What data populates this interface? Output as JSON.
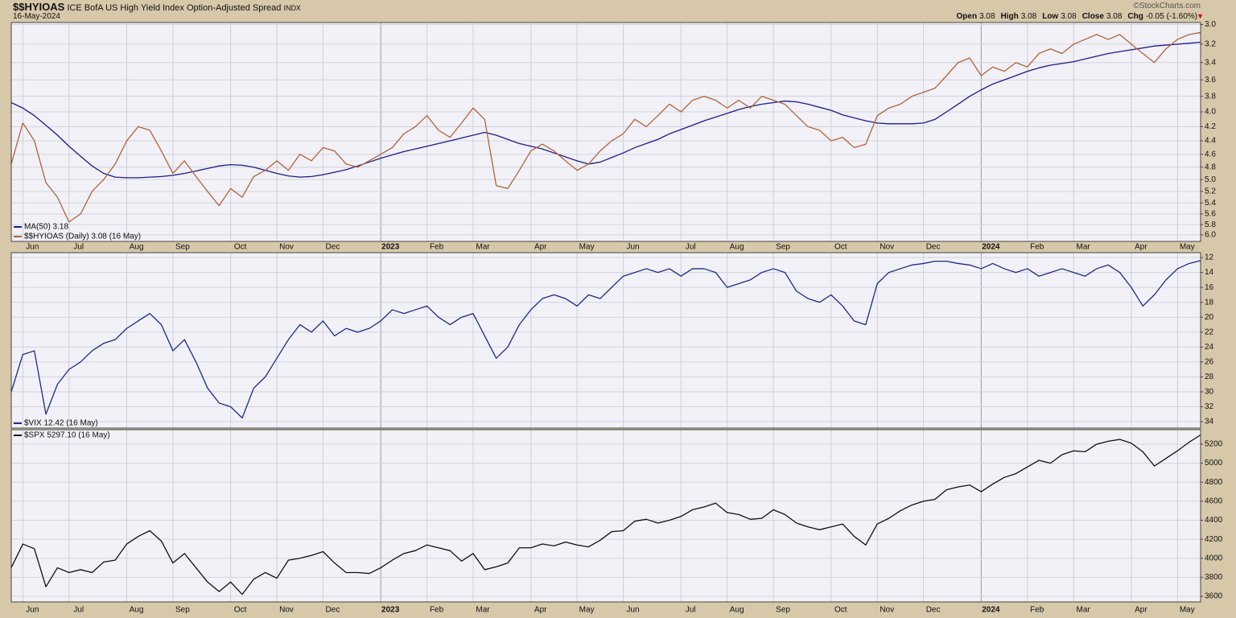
{
  "chart_data": [
    {
      "type": "line",
      "title": "$$HYIOAS",
      "subtitle": "ICE BofA US High Yield Index Option-Adjusted Spread",
      "exchange": "INDX",
      "date": "16-May-2024",
      "source": "©StockCharts.com",
      "quote": [
        {
          "label": "Open",
          "value": 3.08
        },
        {
          "label": "High",
          "value": 3.08
        },
        {
          "label": "Low",
          "value": 3.08
        },
        {
          "label": "Close",
          "value": 3.08
        },
        {
          "label": "Chg",
          "value": -0.05,
          "percent": {
            "value": -1.6,
            "label": "(-1.60%)"
          }
        }
      ],
      "categories": [
        null,
        "Jun",
        null,
        null,
        null,
        "Jul",
        null,
        null,
        null,
        null,
        "Aug",
        null,
        null,
        null,
        "Sep",
        null,
        null,
        null,
        null,
        "Oct",
        null,
        null,
        null,
        "Nov",
        null,
        null,
        null,
        "Dec",
        null,
        null,
        null,
        null,
        "2023",
        null,
        null,
        null,
        "Feb",
        null,
        null,
        null,
        "Mar",
        null,
        null,
        null,
        null,
        "Apr",
        null,
        null,
        null,
        "May",
        null,
        null,
        null,
        "Jun",
        null,
        null,
        null,
        null,
        "Jul",
        null,
        null,
        null,
        "Aug",
        null,
        null,
        null,
        "Sep",
        null,
        null,
        null,
        null,
        "Oct",
        null,
        null,
        null,
        "Nov",
        null,
        null,
        null,
        "Dec",
        null,
        null,
        null,
        null,
        "2024",
        null,
        null,
        null,
        "Feb",
        null,
        null,
        null,
        "Mar",
        null,
        null,
        null,
        null,
        "Apr",
        null,
        null,
        null,
        "May",
        null,
        null
      ],
      "log_scale": true,
      "inverted": true,
      "ylim": [
        2.98,
        6.13
      ],
      "yticks": [
        {
          "value": 3,
          "label": "3.0"
        },
        3.2,
        3.4,
        3.6,
        3.8,
        {
          "value": 4,
          "label": "4.0"
        },
        4.2,
        4.4,
        4.6,
        4.8,
        {
          "value": 5,
          "label": "5.0"
        },
        5.2,
        5.4,
        5.6,
        5.8,
        {
          "value": 6,
          "label": "6.0"
        }
      ],
      "grid": true,
      "legend": "lower left",
      "series": [
        {
          "name": "MA(50) 3.18",
          "color": "#1c1c8c",
          "values": [
            3.88,
            3.95,
            4.05,
            4.18,
            4.32,
            4.48,
            4.63,
            4.78,
            4.9,
            4.96,
            4.97,
            4.97,
            4.96,
            4.95,
            4.93,
            4.9,
            4.86,
            4.82,
            4.78,
            4.76,
            4.77,
            4.8,
            4.85,
            4.9,
            4.94,
            4.96,
            4.95,
            4.92,
            4.88,
            4.84,
            4.78,
            4.72,
            4.66,
            4.61,
            4.56,
            4.52,
            4.48,
            4.44,
            4.4,
            4.36,
            4.32,
            4.28,
            4.32,
            4.38,
            4.44,
            4.48,
            4.52,
            4.58,
            4.64,
            4.7,
            4.75,
            4.72,
            4.65,
            4.58,
            4.5,
            4.44,
            4.38,
            4.3,
            4.24,
            4.18,
            4.12,
            4.07,
            4.02,
            3.97,
            3.93,
            3.9,
            3.88,
            3.86,
            3.87,
            3.9,
            3.94,
            3.98,
            4.04,
            4.08,
            4.12,
            4.15,
            4.16,
            4.16,
            4.16,
            4.15,
            4.1,
            4.0,
            3.9,
            3.8,
            3.72,
            3.65,
            3.6,
            3.55,
            3.5,
            3.46,
            3.43,
            3.41,
            3.39,
            3.36,
            3.33,
            3.3,
            3.28,
            3.26,
            3.24,
            3.22,
            3.21,
            3.2,
            3.19,
            3.18
          ]
        },
        {
          "name": "$$HYIOAS (Daily) 3.08 (16 May)",
          "color": "#b0643c",
          "values": [
            4.75,
            4.15,
            4.4,
            5.05,
            5.3,
            5.75,
            5.6,
            5.2,
            5.0,
            4.75,
            4.4,
            4.2,
            4.25,
            4.55,
            4.9,
            4.7,
            4.95,
            5.2,
            5.45,
            5.15,
            5.3,
            4.95,
            4.85,
            4.7,
            4.85,
            4.6,
            4.7,
            4.5,
            4.55,
            4.75,
            4.8,
            4.7,
            4.6,
            4.5,
            4.3,
            4.2,
            4.05,
            4.25,
            4.35,
            4.15,
            3.95,
            4.1,
            5.1,
            5.15,
            4.85,
            4.55,
            4.45,
            4.55,
            4.7,
            4.85,
            4.75,
            4.55,
            4.4,
            4.3,
            4.1,
            4.2,
            4.05,
            3.9,
            4.0,
            3.85,
            3.8,
            3.85,
            3.95,
            3.85,
            3.95,
            3.8,
            3.85,
            3.9,
            4.05,
            4.2,
            4.25,
            4.4,
            4.35,
            4.5,
            4.45,
            4.05,
            3.95,
            3.9,
            3.8,
            3.75,
            3.7,
            3.55,
            3.4,
            3.35,
            3.55,
            3.45,
            3.5,
            3.4,
            3.45,
            3.3,
            3.25,
            3.3,
            3.2,
            3.15,
            3.1,
            3.15,
            3.1,
            3.2,
            3.3,
            3.4,
            3.25,
            3.15,
            3.1,
            3.08
          ]
        }
      ]
    },
    {
      "type": "line",
      "inverted": true,
      "ylim": [
        11.35,
        34.86
      ],
      "yticks": [
        12,
        14,
        16,
        18,
        20,
        22,
        24,
        26,
        28,
        30,
        32,
        34
      ],
      "grid": true,
      "legend": "lower left",
      "series": [
        {
          "name": "$VIX 12.42 (16 May)",
          "color": "#1f2a88",
          "values": [
            30.0,
            25.0,
            24.5,
            33.0,
            29.0,
            27.0,
            26.0,
            24.5,
            23.5,
            23.0,
            21.5,
            20.5,
            19.5,
            21.0,
            24.5,
            23.0,
            26.0,
            29.5,
            31.5,
            32.0,
            33.5,
            29.5,
            28.0,
            25.5,
            23.0,
            21.0,
            22.0,
            20.5,
            22.5,
            21.5,
            22.0,
            21.5,
            20.5,
            19.0,
            19.5,
            19.0,
            18.5,
            20.0,
            21.0,
            20.0,
            19.5,
            22.5,
            25.5,
            24.0,
            21.0,
            19.0,
            17.5,
            17.0,
            17.5,
            18.5,
            17.0,
            17.5,
            16.0,
            14.5,
            14.0,
            13.5,
            14.0,
            13.5,
            14.5,
            13.5,
            13.5,
            14.0,
            16.0,
            15.5,
            15.0,
            14.0,
            13.5,
            14.0,
            16.5,
            17.5,
            18.0,
            17.0,
            18.5,
            20.5,
            21.0,
            15.5,
            14.0,
            13.5,
            13.0,
            12.8,
            12.5,
            12.5,
            12.8,
            13.0,
            13.5,
            12.8,
            13.5,
            14.0,
            13.5,
            14.5,
            14.0,
            13.5,
            14.0,
            14.5,
            13.5,
            13.0,
            14.0,
            16.0,
            18.5,
            17.0,
            15.0,
            13.5,
            12.8,
            12.42
          ]
        }
      ]
    },
    {
      "type": "line",
      "ylim": [
        3541,
        5352
      ],
      "yticks": [
        3600,
        3800,
        4000,
        4200,
        4400,
        4600,
        4800,
        5000,
        5200
      ],
      "grid": true,
      "legend": "upper left",
      "categories": [
        null,
        "Jun",
        null,
        null,
        null,
        "Jul",
        null,
        null,
        null,
        null,
        "Aug",
        null,
        null,
        null,
        "Sep",
        null,
        null,
        null,
        null,
        "Oct",
        null,
        null,
        null,
        "Nov",
        null,
        null,
        null,
        "Dec",
        null,
        null,
        null,
        null,
        "2023",
        null,
        null,
        null,
        "Feb",
        null,
        null,
        null,
        "Mar",
        null,
        null,
        null,
        null,
        "Apr",
        null,
        null,
        null,
        "May",
        null,
        null,
        null,
        "Jun",
        null,
        null,
        null,
        null,
        "Jul",
        null,
        null,
        null,
        "Aug",
        null,
        null,
        null,
        "Sep",
        null,
        null,
        null,
        null,
        "Oct",
        null,
        null,
        null,
        "Nov",
        null,
        null,
        null,
        "Dec",
        null,
        null,
        null,
        null,
        "2024",
        null,
        null,
        null,
        "Feb",
        null,
        null,
        null,
        "Mar",
        null,
        null,
        null,
        null,
        "Apr",
        null,
        null,
        null,
        "May",
        null,
        null
      ],
      "series": [
        {
          "name": "$SPX 5297.10 (16 May)",
          "color": "#111111",
          "values": [
            3900,
            4150,
            4100,
            3700,
            3900,
            3850,
            3880,
            3850,
            3960,
            3980,
            4150,
            4230,
            4290,
            4180,
            3950,
            4050,
            3900,
            3750,
            3650,
            3750,
            3620,
            3780,
            3850,
            3790,
            3980,
            4000,
            4030,
            4070,
            3950,
            3850,
            3850,
            3840,
            3900,
            3980,
            4050,
            4080,
            4140,
            4110,
            4080,
            3970,
            4050,
            3880,
            3910,
            3950,
            4110,
            4110,
            4150,
            4130,
            4170,
            4140,
            4120,
            4190,
            4280,
            4290,
            4390,
            4410,
            4370,
            4400,
            4440,
            4510,
            4540,
            4580,
            4480,
            4460,
            4410,
            4420,
            4510,
            4460,
            4370,
            4330,
            4300,
            4330,
            4360,
            4230,
            4140,
            4360,
            4420,
            4500,
            4560,
            4600,
            4620,
            4720,
            4750,
            4770,
            4700,
            4780,
            4850,
            4890,
            4960,
            5030,
            5000,
            5090,
            5130,
            5120,
            5200,
            5230,
            5250,
            5210,
            5120,
            4970,
            5050,
            5130,
            5220,
            5297.1
          ]
        }
      ]
    }
  ]
}
